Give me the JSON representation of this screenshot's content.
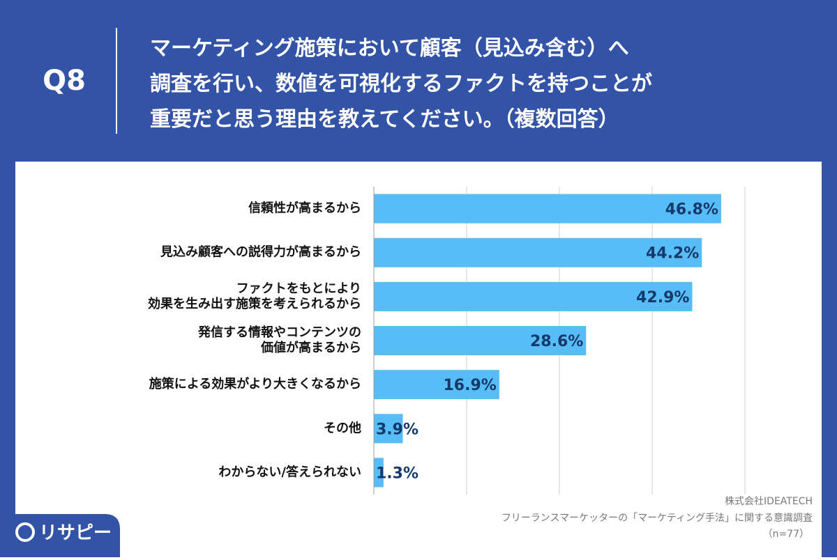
{
  "header": {
    "badge": "Q8"
  },
  "chart_data": {
    "type": "bar",
    "orientation": "horizontal",
    "title": "マーケティング施策において顧客（見込み含む）へ\n調査を行い、数値を可視化するファクトを持つことが\n重要だと思う理由を教えてください。（複数回答）",
    "categories": [
      "信頼性が高まるから",
      "見込み顧客への説得力が高まるから",
      "ファクトをもとにより\n効果を生み出す施策を考えられるから",
      "発信する情報やコンテンツの\n価値が高まるから",
      "施策による効果がより大きくなるから",
      "その他",
      "わからない/答えられない"
    ],
    "values": [
      46.8,
      44.2,
      42.9,
      28.6,
      16.9,
      3.9,
      1.3
    ],
    "value_labels": [
      "46.8%",
      "44.2%",
      "42.9%",
      "28.6%",
      "16.9%",
      "3.9%",
      "1.3%"
    ],
    "color": "#56bdf7",
    "xlim": [
      0,
      50
    ],
    "xticks": [
      0,
      12.5,
      25,
      37.5,
      50
    ],
    "grid": true
  },
  "footer": {
    "company": "株式会社IDEATECH",
    "survey": "フリーランスマーケッターの「マーケティング手法」に関する意識調査",
    "sample": "（n=77）",
    "logo": "リサピー"
  }
}
